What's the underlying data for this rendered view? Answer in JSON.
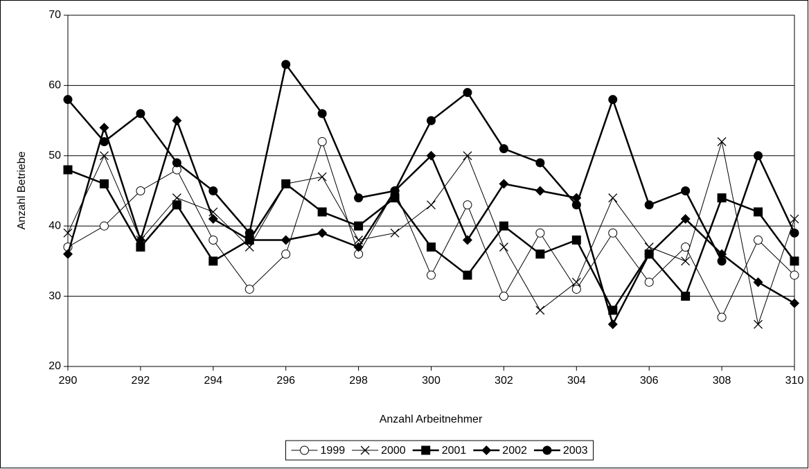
{
  "chart_data": {
    "type": "line",
    "x_label": "Anzahl Arbeitnehmer",
    "y_label": "Anzahl Betriebe",
    "x": [
      290,
      291,
      292,
      293,
      294,
      295,
      296,
      297,
      298,
      299,
      300,
      301,
      302,
      303,
      304,
      305,
      306,
      307,
      308,
      309,
      310
    ],
    "xlim": [
      290,
      310
    ],
    "xticks": [
      290,
      292,
      294,
      296,
      298,
      300,
      302,
      304,
      306,
      308,
      310
    ],
    "ylim": [
      20,
      70
    ],
    "yticks": [
      20,
      30,
      40,
      50,
      60,
      70
    ],
    "grid": true,
    "legend": "bottom",
    "series": [
      {
        "name": "1999",
        "color": "#000000",
        "marker": "circle-open",
        "line_width": 1,
        "values": [
          37,
          40,
          45,
          48,
          38,
          31,
          36,
          52,
          36,
          45,
          33,
          43,
          30,
          39,
          31,
          39,
          32,
          37,
          27,
          38,
          33
        ]
      },
      {
        "name": "2000",
        "color": "#000000",
        "marker": "x",
        "line_width": 1,
        "values": [
          39,
          50,
          38,
          44,
          42,
          37,
          46,
          47,
          38,
          39,
          43,
          50,
          37,
          28,
          32,
          44,
          37,
          35,
          52,
          26,
          41
        ]
      },
      {
        "name": "2001",
        "color": "#000000",
        "marker": "square",
        "line_width": 2.5,
        "values": [
          48,
          46,
          37,
          43,
          35,
          38,
          46,
          42,
          40,
          44,
          37,
          33,
          40,
          36,
          38,
          28,
          36,
          30,
          44,
          42,
          35
        ]
      },
      {
        "name": "2002",
        "color": "#000000",
        "marker": "diamond",
        "line_width": 2.5,
        "values": [
          36,
          54,
          38,
          55,
          41,
          38,
          38,
          39,
          37,
          45,
          50,
          38,
          46,
          45,
          44,
          26,
          36,
          41,
          36,
          32,
          29
        ]
      },
      {
        "name": "2003",
        "color": "#000000",
        "marker": "circle",
        "line_width": 2.5,
        "values": [
          58,
          52,
          56,
          49,
          45,
          39,
          63,
          56,
          44,
          45,
          55,
          59,
          51,
          49,
          43,
          58,
          43,
          45,
          35,
          50,
          39
        ]
      }
    ]
  }
}
